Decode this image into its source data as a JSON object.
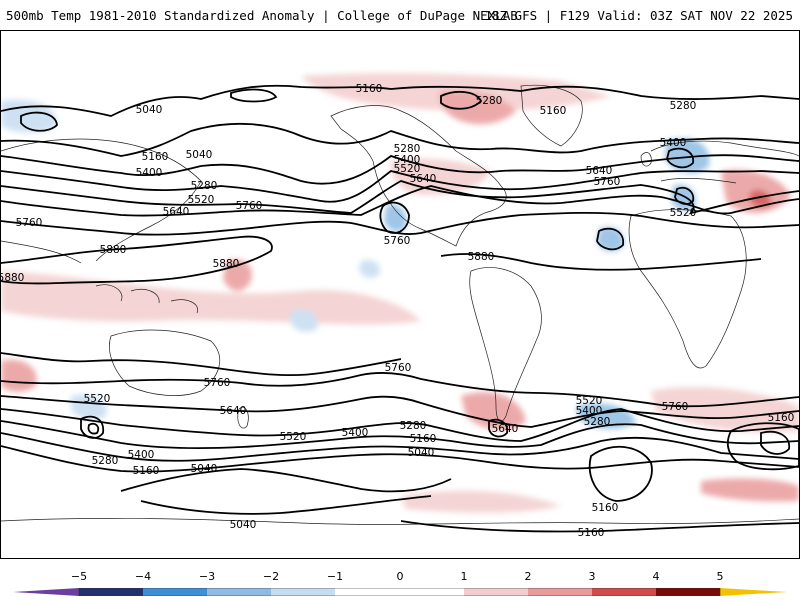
{
  "header": {
    "title_left": "500mb Temp 1981-2010 Standardized Anomaly | College of DuPage NEXLAB",
    "title_right": "18Z GFS | F129 Valid: 03Z SAT NOV 22 2025"
  },
  "map": {
    "contour_labels": [
      {
        "id": "l1",
        "text": "5160"
      },
      {
        "id": "l2",
        "text": "5040"
      },
      {
        "id": "l3",
        "text": "5280"
      },
      {
        "id": "l4",
        "text": "5160"
      },
      {
        "id": "l5",
        "text": "5280"
      },
      {
        "id": "l6",
        "text": "5160"
      },
      {
        "id": "l7",
        "text": "5040"
      },
      {
        "id": "l8",
        "text": "5400"
      },
      {
        "id": "l9",
        "text": "5280"
      },
      {
        "id": "l10",
        "text": "5520"
      },
      {
        "id": "l11",
        "text": "5640"
      },
      {
        "id": "l12",
        "text": "5760"
      },
      {
        "id": "l13",
        "text": "5280"
      },
      {
        "id": "l14",
        "text": "5400"
      },
      {
        "id": "l15",
        "text": "5520"
      },
      {
        "id": "l16",
        "text": "5640"
      },
      {
        "id": "l17",
        "text": "5760"
      },
      {
        "id": "l18",
        "text": "5880"
      },
      {
        "id": "l19",
        "text": "5880"
      },
      {
        "id": "l20",
        "text": "5760"
      },
      {
        "id": "l21",
        "text": "5880"
      },
      {
        "id": "l22",
        "text": "5640"
      },
      {
        "id": "l23",
        "text": "5760"
      },
      {
        "id": "l24",
        "text": "5400"
      },
      {
        "id": "l25",
        "text": "5520"
      },
      {
        "id": "l26",
        "text": "5880"
      },
      {
        "id": "l27",
        "text": "5760"
      },
      {
        "id": "l28",
        "text": "5760"
      },
      {
        "id": "l29",
        "text": "5520"
      },
      {
        "id": "l30",
        "text": "5640"
      },
      {
        "id": "l31",
        "text": "5520"
      },
      {
        "id": "l32",
        "text": "5400"
      },
      {
        "id": "l33",
        "text": "5280"
      },
      {
        "id": "l34",
        "text": "5160"
      },
      {
        "id": "l35",
        "text": "5040"
      },
      {
        "id": "l36",
        "text": "5400"
      },
      {
        "id": "l37",
        "text": "5280"
      },
      {
        "id": "l38",
        "text": "5160"
      },
      {
        "id": "l39",
        "text": "5040"
      },
      {
        "id": "l40",
        "text": "5040"
      },
      {
        "id": "l41",
        "text": "5640"
      },
      {
        "id": "l42",
        "text": "5520"
      },
      {
        "id": "l43",
        "text": "5400"
      },
      {
        "id": "l44",
        "text": "5280"
      },
      {
        "id": "l45",
        "text": "5760"
      },
      {
        "id": "l46",
        "text": "5160"
      },
      {
        "id": "l47",
        "text": "5160"
      },
      {
        "id": "l48",
        "text": "5160"
      }
    ]
  },
  "legend": {
    "ticks": [
      "−5",
      "−4",
      "−3",
      "−2",
      "−1",
      "0",
      "1",
      "2",
      "3",
      "4",
      "5"
    ],
    "colors": {
      "n5": "#6b3fa0",
      "n4": "#22306e",
      "n3": "#3d8fd6",
      "n2": "#8fbbe3",
      "n1": "#c6dcf0",
      "zero": "#ffffff",
      "p1": "#f3cdcd",
      "p2": "#e99b9b",
      "p3": "#d24b4b",
      "p4": "#ad1c1c",
      "p5": "#7a0a0a",
      "extreme": "#f2c200"
    }
  }
}
